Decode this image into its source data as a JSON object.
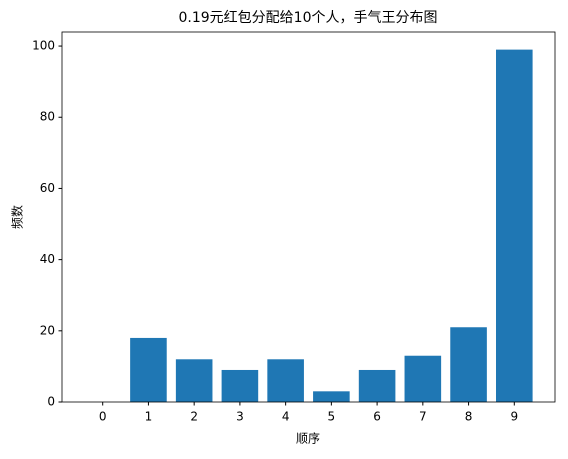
{
  "chart_data": {
    "type": "bar",
    "title": "0.19元红包分配给10个人，手气王分布图",
    "x_label": "顺序",
    "y_label": "频数",
    "x": [
      0,
      1,
      2,
      3,
      4,
      5,
      6,
      7,
      8,
      9
    ],
    "values": [
      0,
      18,
      12,
      9,
      12,
      3,
      9,
      13,
      21,
      99
    ],
    "color": "#1f77b4",
    "xlim": [
      -0.89,
      9.89
    ],
    "xticks": [
      0,
      1,
      2,
      3,
      4,
      5,
      6,
      7,
      8,
      9
    ],
    "ylim": [
      0,
      103.95
    ],
    "yticks": [
      0,
      20,
      40,
      60,
      80,
      100
    ]
  }
}
